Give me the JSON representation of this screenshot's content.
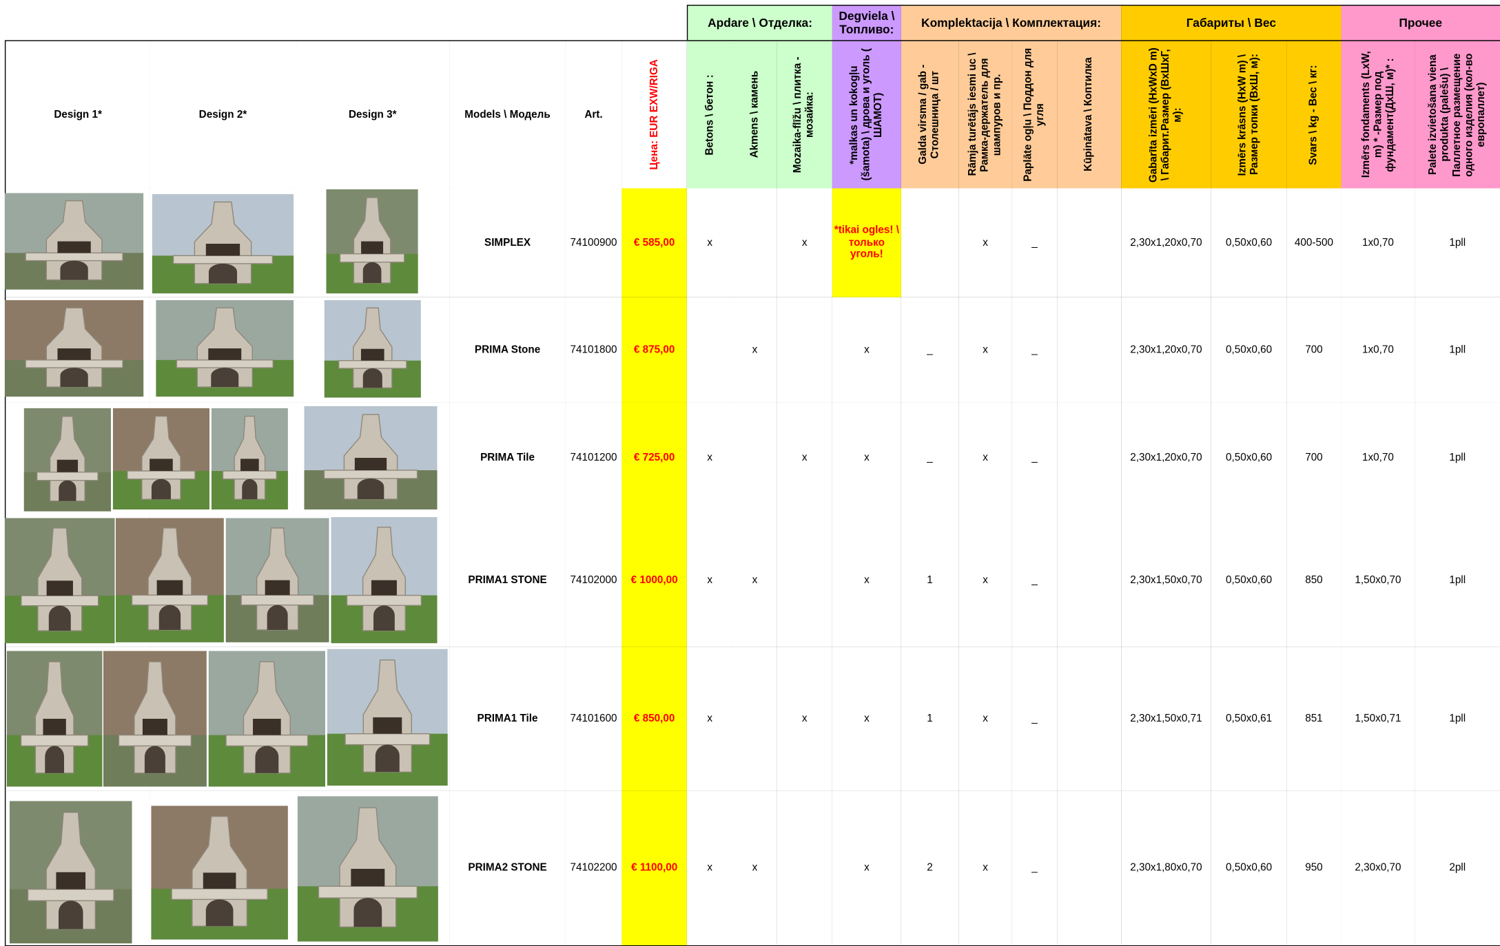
{
  "table": {
    "group_headers": [
      "Apdare \\ Отделка:",
      "Degviela \\ Топливо:",
      "Komplektacija \\ Комплектация:",
      "Габариты \\ Вес",
      "Прочее"
    ],
    "columns": [
      "Design 1*",
      "Design 2*",
      "Design 3*",
      "Models \\ Модель",
      "Art.",
      "Цена: EUR EXW/RIGA",
      "Betons \\ бетон :",
      "Akmens \\ камень",
      "Mozaika-flīžu \\ плитка - мозайка:",
      "*malkas un kokogļu (šamota) \\   дрова и уголь ( ШАМОТ)",
      "Galda virsma / gab - Столешница / шт",
      "Rāmja turētājs iesmi uc \\ Рамка-держатель для шампуров и пр.",
      "Paplāte ogļu \\ Поддон для угля",
      "Kūpinātava \\ Коптилка",
      "Gabarīta izmēri (HxWxD m) \\ Габарит.Размер (ВхШхГ, м):",
      "Izmērs krāsns (HxW m) \\ Размер топки (ВхШ, м):",
      "Svars \\ kg - Вес \\ кг:",
      "Izmērs fondaments (LxW, m) * -Размер под фундамент(ДхШ, м)* :",
      "Paletе izvietošana viena produkta (palešu) \\ Паллетное размещение одного изделия (кол-во европаллет)"
    ],
    "rows": [
      {
        "model": "SIMPLEX",
        "art": "74100900",
        "price": "€ 585,00",
        "cells": [
          "x",
          null,
          "x",
          "*tikai ogles! \\ только уголь!",
          null,
          "x",
          "_",
          null,
          "2,30x1,20x0,70",
          "0,50x0,60",
          "400-500",
          "1x0,70",
          "1pll"
        ]
      },
      {
        "model": "PRIMA Stone",
        "art": "74101800",
        "price": "€ 875,00",
        "cells": [
          null,
          "x",
          null,
          "x",
          "_",
          "x",
          "_",
          null,
          "2,30x1,20x0,70",
          "0,50x0,60",
          "700",
          "1x0,70",
          "1pll"
        ]
      },
      {
        "model": "PRIMA Tile",
        "art": "74101200",
        "price": "€ 725,00",
        "cells": [
          "x",
          null,
          "x",
          "x",
          "_",
          "x",
          "_",
          null,
          "2,30x1,20x0,70",
          "0,50x0,60",
          "700",
          "1x0,70",
          "1pll"
        ]
      },
      {
        "model": "PRIMA1 STONE",
        "art": "74102000",
        "price": "€ 1000,00",
        "cells": [
          "x",
          "x",
          null,
          "x",
          "1",
          "x",
          "_",
          null,
          "2,30x1,50x0,70",
          "0,50x0,60",
          "850",
          "1,50x0,70",
          "1pll"
        ]
      },
      {
        "model": "PRIMA1 Tile",
        "art": "74101600",
        "price": "€ 850,00",
        "cells": [
          "x",
          null,
          "x",
          "x",
          "1",
          "x",
          "_",
          null,
          "2,30x1,50x0,71",
          "0,50x0,61",
          "851",
          "1,50x0,71",
          "1pll"
        ]
      },
      {
        "model": "PRIMA2 STONE",
        "art": "74102200",
        "price": "€ 1100,00",
        "cells": [
          "x",
          "x",
          null,
          "x",
          "2",
          "x",
          "_",
          null,
          "2,30x1,80x0,70",
          "0,50x0,60",
          "950",
          "2,30x0,70",
          "2pll"
        ]
      }
    ]
  }
}
